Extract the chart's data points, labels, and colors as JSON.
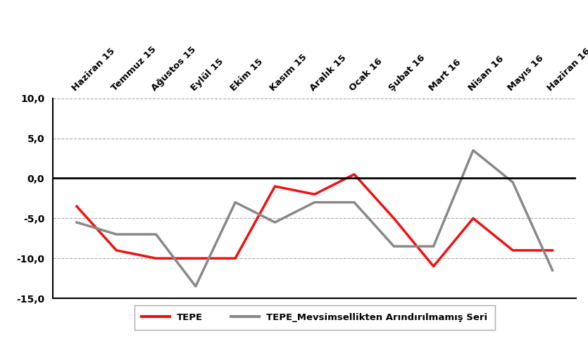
{
  "categories": [
    "Haziran 15",
    "Temmuz 15",
    "Ağustos 15",
    "Eylül 15",
    "Ekim 15",
    "Kasım 15",
    "Aralık 15",
    "Ocak 16",
    "Şubat 16",
    "Mart 16",
    "Nisan 16",
    "Mayıs 16",
    "Haziran 16"
  ],
  "tepe": [
    -3.5,
    -9.0,
    -10.0,
    -10.0,
    -10.0,
    -1.0,
    -2.0,
    0.5,
    -5.0,
    -11.0,
    -5.0,
    -9.0,
    -9.0
  ],
  "tepe_mevs": [
    -5.5,
    -7.0,
    -7.0,
    -13.5,
    -3.0,
    -5.5,
    -3.0,
    -3.0,
    -8.5,
    -8.5,
    3.5,
    -0.5,
    -11.5
  ],
  "tepe_color": "#ee1111",
  "mevs_color": "#888888",
  "ylim": [
    -15.0,
    10.0
  ],
  "yticks": [
    -15.0,
    -10.0,
    -5.0,
    0.0,
    5.0,
    10.0
  ],
  "legend_tepe": "TEPE",
  "legend_mevs": "TEPE_Mevsimsellikten Arındırılmamış Seri",
  "background_color": "#ffffff",
  "line_width": 2.5,
  "zero_line_color": "#000000"
}
